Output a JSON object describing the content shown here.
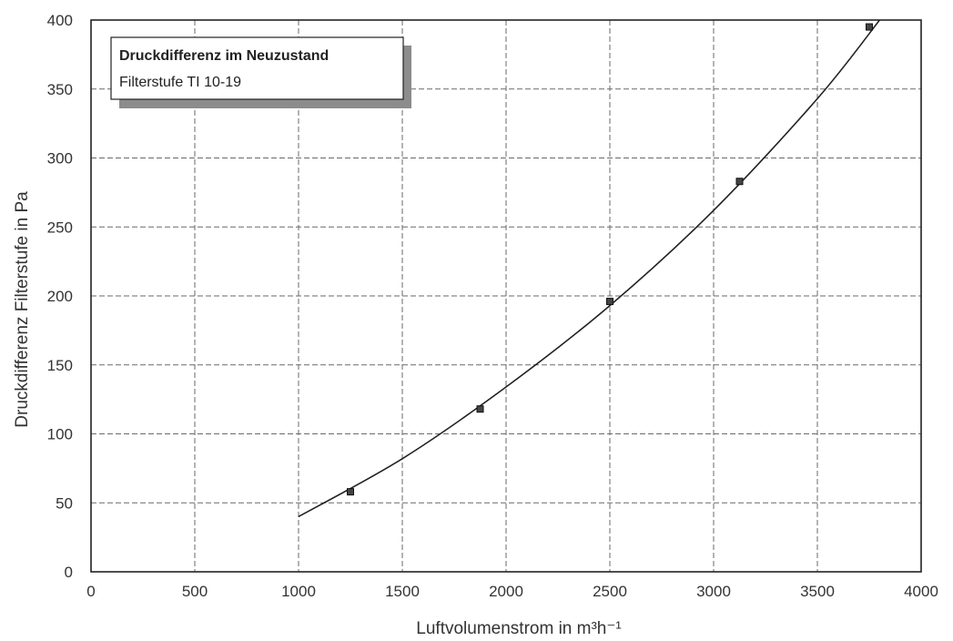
{
  "chart_data": {
    "type": "line",
    "legend": {
      "title": "Druckdifferenz im Neuzustand",
      "subtitle": "Filterstufe TI 10-19",
      "placement": "top-left"
    },
    "xlabel": "Luftvolumenstrom in m³h⁻¹",
    "ylabel": "Druckdifferenz Filterstufe in Pa",
    "xlim": [
      0,
      4000
    ],
    "ylim": [
      0,
      400
    ],
    "xticks": [
      0,
      500,
      1000,
      1500,
      2000,
      2500,
      3000,
      3500,
      4000
    ],
    "yticks": [
      0,
      50,
      100,
      150,
      200,
      250,
      300,
      350,
      400
    ],
    "grid": true,
    "series": [
      {
        "points": [
          {
            "x": 1250,
            "y": 58
          },
          {
            "x": 1875,
            "y": 118
          },
          {
            "x": 2500,
            "y": 196
          },
          {
            "x": 3125,
            "y": 283
          },
          {
            "x": 3750,
            "y": 395
          }
        ],
        "fit_curve": [
          {
            "x": 1000,
            "y": 40
          },
          {
            "x": 1500,
            "y": 82
          },
          {
            "x": 2000,
            "y": 134
          },
          {
            "x": 2500,
            "y": 193
          },
          {
            "x": 3000,
            "y": 262
          },
          {
            "x": 3500,
            "y": 343
          },
          {
            "x": 3800,
            "y": 400
          }
        ]
      }
    ]
  }
}
